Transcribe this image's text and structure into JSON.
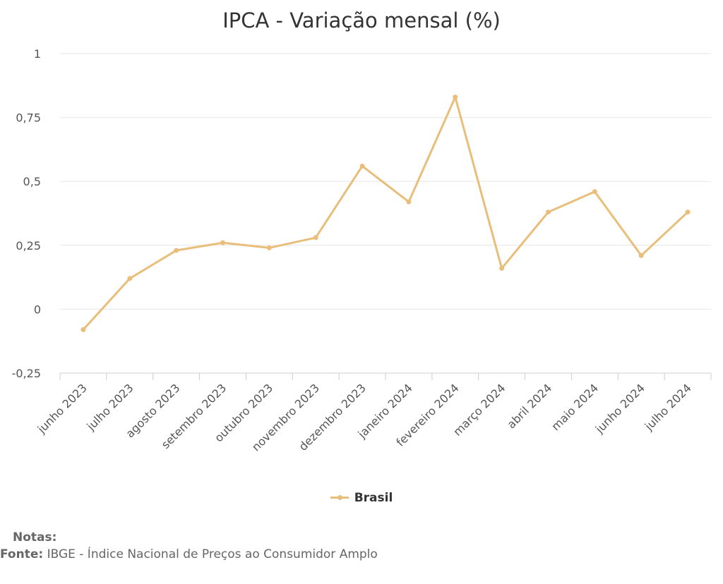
{
  "chart_data": {
    "type": "line",
    "title": "IPCA - Variação mensal (%)",
    "xlabel": "",
    "ylabel": "",
    "categories": [
      "junho 2023",
      "julho 2023",
      "agosto 2023",
      "setembro 2023",
      "outubro 2023",
      "novembro 2023",
      "dezembro 2023",
      "janeiro 2024",
      "fevereiro 2024",
      "março 2024",
      "abril 2024",
      "maio 2024",
      "junho 2024",
      "julho 2024"
    ],
    "series": [
      {
        "name": "Brasil",
        "color": "#e8be7a",
        "values": [
          -0.08,
          0.12,
          0.23,
          0.26,
          0.24,
          0.28,
          0.56,
          0.42,
          0.83,
          0.16,
          0.38,
          0.46,
          0.21,
          0.38
        ]
      }
    ],
    "ylim": [
      -0.25,
      1
    ],
    "yticks": [
      -0.25,
      0,
      0.25,
      0.5,
      0.75,
      1
    ],
    "ytick_labels": [
      "-0,25",
      "0",
      "0,25",
      "0,5",
      "0,75",
      "1"
    ],
    "grid": true,
    "legend": "bottom-center"
  },
  "legend": {
    "label": "Brasil"
  },
  "footer": {
    "notes_label": "Notas:",
    "source_label": "Fonte:",
    "source_text": "IBGE - Índice Nacional de Preços ao Consumidor Amplo"
  }
}
